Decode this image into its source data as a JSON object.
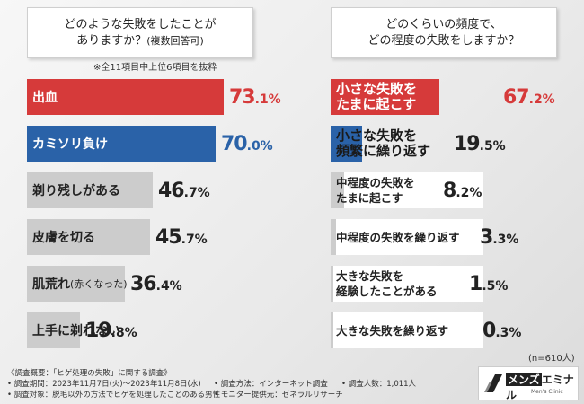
{
  "chart_data": [
    {
      "type": "bar",
      "title": "どのような失敗をしたことがありますか？(複数回答可)",
      "title_line1": "どのような失敗をしたことが",
      "title_line2_main": "ありますか？",
      "title_line2_sub": "(複数回答可)",
      "note": "※全11項目中上位6項目を抜粋",
      "categories": [
        "出血",
        "カミソリ負け",
        "剃り残しがある",
        "皮膚を切る",
        "肌荒れ(赤くなった)",
        "上手に剃れない"
      ],
      "values": [
        73.1,
        70.0,
        46.7,
        45.7,
        36.4,
        19.8
      ],
      "value_labels": [
        [
          "73",
          ".1%"
        ],
        [
          "70",
          ".0%"
        ],
        [
          "46",
          ".7%"
        ],
        [
          "45",
          ".7%"
        ],
        [
          "36",
          ".4%"
        ],
        [
          "19",
          ".8%"
        ]
      ],
      "label_main": [
        "出血",
        "カミソリ負け",
        "剃り残しがある",
        "皮膚を切る",
        "肌荒れ",
        "上手に剃れない"
      ],
      "label_sub": [
        "",
        "",
        "",
        "",
        "(赤くなった)",
        ""
      ],
      "colors": [
        "#d63a3a",
        "#2a62a8",
        "#cccccc",
        "#cccccc",
        "#cccccc",
        "#cccccc"
      ],
      "ylim": [
        0,
        100
      ]
    },
    {
      "type": "bar",
      "title": "どのくらいの頻度で、どの程度の失敗をしますか？",
      "title_line1": "どのくらいの頻度で、",
      "title_line2": "どの程度の失敗をしますか？",
      "categories": [
        "小さな失敗をたまに起こす",
        "小さな失敗を頻繁に繰り返す",
        "中程度の失敗をたまに起こす",
        "中程度の失敗を繰り返す",
        "大きな失敗を経験したことがある",
        "大きな失敗を繰り返す"
      ],
      "label_lines": [
        [
          "小さな失敗を",
          "たまに起こす"
        ],
        [
          "小さな失敗を",
          "頻繁に繰り返す"
        ],
        [
          "中程度の失敗を",
          "たまに起こす"
        ],
        [
          "中程度の失敗を繰り返す",
          ""
        ],
        [
          "大きな失敗を",
          "経験したことがある"
        ],
        [
          "大きな失敗を繰り返す",
          ""
        ]
      ],
      "values": [
        67.2,
        19.5,
        8.2,
        3.3,
        1.5,
        0.3
      ],
      "value_labels": [
        [
          "67",
          ".2%"
        ],
        [
          "19",
          ".5%"
        ],
        [
          "8",
          ".2%"
        ],
        [
          "3",
          ".3%"
        ],
        [
          "1",
          ".5%"
        ],
        [
          "0",
          ".3%"
        ]
      ],
      "colors": [
        "#d63a3a",
        "#2a62a8",
        "#cccccc",
        "#cccccc",
        "#cccccc",
        "#cccccc"
      ],
      "sample": "(n=610人)",
      "ylim": [
        0,
        100
      ]
    }
  ],
  "footer": {
    "line1": "《調査概要：「ヒゲ処理の失敗」に関する調査》",
    "line2a": "• 調査期間：2023年11月7日(火)～2023年11月8日(水)",
    "line2b": "• 調査方法：インターネット調査",
    "line2c": "• 調査人数：1,011人",
    "line3a": "• 調査対象：脱毛以外の方法でヒゲを処理したことのある男性",
    "line3b": "• モニター提供元：ゼネラルリサーチ"
  },
  "logo": {
    "part1": "メンズ",
    "part2": "エミナル",
    "tagline": "Men's Clinic"
  }
}
